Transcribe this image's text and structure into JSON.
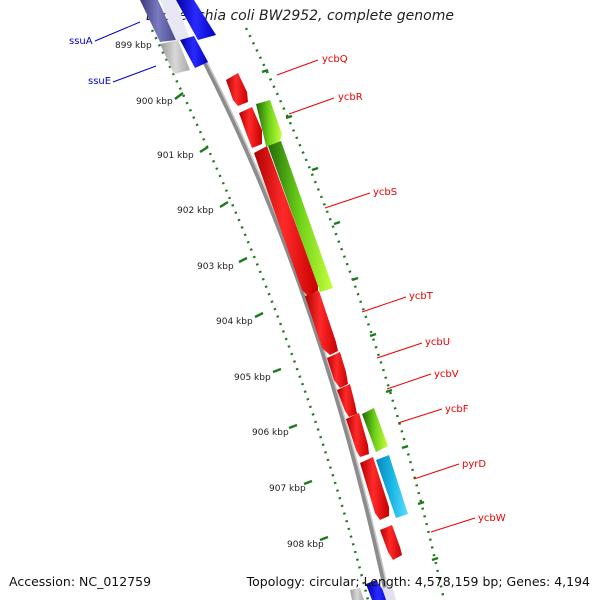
{
  "header": {
    "title": "Escherichia coli BW2952, complete genome"
  },
  "footer": {
    "accession": "Accession: NC_012759",
    "summary": "Topology: circular; Length: 4,578,159 bp; Genes: 4,194"
  },
  "ticks": [
    {
      "label": "899 kbp",
      "pos": 899
    },
    {
      "label": "900 kbp",
      "pos": 900
    },
    {
      "label": "901 kbp",
      "pos": 901
    },
    {
      "label": "902 kbp",
      "pos": 902
    },
    {
      "label": "903 kbp",
      "pos": 903
    },
    {
      "label": "904 kbp",
      "pos": 904
    },
    {
      "label": "905 kbp",
      "pos": 905
    },
    {
      "label": "906 kbp",
      "pos": 906
    },
    {
      "label": "907 kbp",
      "pos": 907
    },
    {
      "label": "908 kbp",
      "pos": 908
    }
  ],
  "genes": [
    {
      "name": "ssuA",
      "strand": "-",
      "color": "#0000ee"
    },
    {
      "name": "ssuE",
      "strand": "-",
      "color": "#0000ee"
    },
    {
      "name": "ycbQ",
      "strand": "+",
      "color": "#ee0000"
    },
    {
      "name": "ycbR",
      "strand": "+",
      "color": "#ee0000"
    },
    {
      "name": "ycbS",
      "strand": "+",
      "color": "#ee0000"
    },
    {
      "name": "ycbT",
      "strand": "+",
      "color": "#ee0000"
    },
    {
      "name": "ycbU",
      "strand": "+",
      "color": "#ee0000"
    },
    {
      "name": "ycbV",
      "strand": "+",
      "color": "#ee0000"
    },
    {
      "name": "ycbF",
      "strand": "+",
      "color": "#ee0000"
    },
    {
      "name": "pyrD",
      "strand": "+",
      "color": "#ee0000"
    },
    {
      "name": "ycbW",
      "strand": "+",
      "color": "#ee0000"
    }
  ],
  "colors": {
    "backbone": "#8c8c8c",
    "tick": "#1f7a1f",
    "forward_label": "#ee0000",
    "reverse_label": "#0000cc",
    "feature_green": "#6fd21a",
    "feature_cyan": "#19b7e6"
  }
}
